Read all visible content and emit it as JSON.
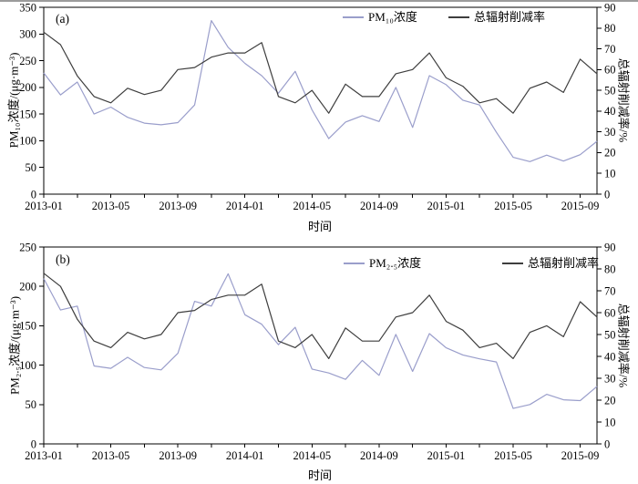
{
  "page": {
    "background": "#ffffff",
    "top_rule_color": "#9c9c9c"
  },
  "chart_data": [
    {
      "type": "line",
      "key": "chart-a",
      "panel_label": "(a)",
      "categories": [
        "2013-01",
        "2013-02",
        "2013-03",
        "2013-04",
        "2013-05",
        "2013-06",
        "2013-07",
        "2013-08",
        "2013-09",
        "2013-10",
        "2013-11",
        "2013-12",
        "2014-01",
        "2014-02",
        "2014-03",
        "2014-04",
        "2014-05",
        "2014-06",
        "2014-07",
        "2014-08",
        "2014-09",
        "2014-10",
        "2014-11",
        "2014-12",
        "2015-01",
        "2015-02",
        "2015-03",
        "2015-04",
        "2015-05",
        "2015-06",
        "2015-07",
        "2015-08",
        "2015-09",
        "2015-10"
      ],
      "x_axis": {
        "label": "时间",
        "tick_label_every": 4,
        "minor_tick_every": 2,
        "tick_labels": [
          "2013-01",
          "2013-05",
          "2013-09",
          "2014-01",
          "2014-05",
          "2014-09",
          "2015-01",
          "2015-05",
          "2015-09"
        ]
      },
      "left_axis": {
        "label": "PM₁₀浓度/(μg·m⁻³)",
        "min": 0,
        "max": 350,
        "ticks": [
          0,
          50,
          100,
          150,
          200,
          250,
          300,
          350
        ]
      },
      "right_axis": {
        "label": "总辐射削减率/%",
        "min": 0,
        "max": 90,
        "ticks": [
          0,
          10,
          20,
          30,
          40,
          50,
          60,
          70,
          80,
          90
        ]
      },
      "legend_position": "top-inside",
      "grid": false,
      "series": [
        {
          "name": "PM₁₀浓度",
          "axis": "left",
          "color": "#9a9ecb",
          "values": [
            227,
            186,
            210,
            150,
            163,
            144,
            133,
            130,
            134,
            167,
            325,
            275,
            245,
            222,
            189,
            230,
            158,
            104,
            135,
            147,
            136,
            200,
            125,
            222,
            205,
            176,
            167,
            116,
            69,
            61,
            73,
            62,
            74,
            99
          ]
        },
        {
          "name": "总辐射削减率",
          "axis": "right",
          "color": "#3e3e3e",
          "values": [
            78,
            72,
            57,
            47,
            44,
            51,
            48,
            50,
            60,
            61,
            66,
            68,
            68,
            73,
            47,
            44,
            50,
            39,
            53,
            47,
            47,
            58,
            60,
            68,
            56,
            52,
            44,
            46,
            39,
            51,
            54,
            49,
            65,
            58
          ]
        }
      ]
    },
    {
      "type": "line",
      "key": "chart-b",
      "panel_label": "(b)",
      "categories": [
        "2013-01",
        "2013-02",
        "2013-03",
        "2013-04",
        "2013-05",
        "2013-06",
        "2013-07",
        "2013-08",
        "2013-09",
        "2013-10",
        "2013-11",
        "2013-12",
        "2014-01",
        "2014-02",
        "2014-03",
        "2014-04",
        "2014-05",
        "2014-06",
        "2014-07",
        "2014-08",
        "2014-09",
        "2014-10",
        "2014-11",
        "2014-12",
        "2015-01",
        "2015-02",
        "2015-03",
        "2015-04",
        "2015-05",
        "2015-06",
        "2015-07",
        "2015-08",
        "2015-09",
        "2015-10"
      ],
      "x_axis": {
        "label": "时间",
        "tick_label_every": 4,
        "minor_tick_every": 2,
        "tick_labels": [
          "2013-01",
          "2013-05",
          "2013-09",
          "2014-01",
          "2014-05",
          "2014-09",
          "2015-01",
          "2015-05",
          "2015-09"
        ]
      },
      "left_axis": {
        "label": "PM₂.₅浓度/(μg·m⁻³)",
        "min": 0,
        "max": 250,
        "ticks": [
          0,
          50,
          100,
          150,
          200,
          250
        ]
      },
      "right_axis": {
        "label": "总辐射削减率/%",
        "min": 0,
        "max": 90,
        "ticks": [
          0,
          10,
          20,
          30,
          40,
          50,
          60,
          70,
          80,
          90
        ]
      },
      "legend_position": "top-inside",
      "grid": false,
      "series": [
        {
          "name": "PM₂.₅浓度",
          "axis": "left",
          "color": "#9a9ecb",
          "values": [
            210,
            170,
            175,
            99,
            96,
            110,
            97,
            94,
            115,
            181,
            175,
            216,
            164,
            152,
            126,
            148,
            95,
            90,
            82,
            106,
            87,
            139,
            92,
            140,
            122,
            113,
            108,
            104,
            45,
            50,
            63,
            56,
            55,
            73
          ]
        },
        {
          "name": "总辐射削减率",
          "axis": "right",
          "color": "#3e3e3e",
          "values": [
            78,
            72,
            57,
            47,
            44,
            51,
            48,
            50,
            60,
            61,
            66,
            68,
            68,
            73,
            47,
            44,
            50,
            39,
            53,
            47,
            47,
            58,
            60,
            68,
            56,
            52,
            44,
            46,
            39,
            51,
            54,
            49,
            65,
            58
          ]
        }
      ]
    }
  ]
}
